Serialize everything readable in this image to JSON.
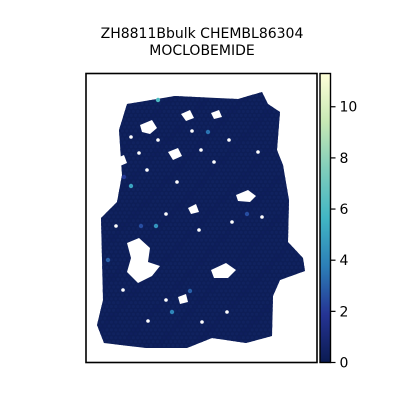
{
  "chart_data": {
    "type": "heatmap",
    "title": "ZH8811Bbulk CHEMBL86304",
    "subtitle": "MOCLOBEMIDE",
    "xlabel": "",
    "ylabel": "",
    "colorbar": {
      "min": 0,
      "max": 11.3,
      "ticks": [
        0,
        2,
        4,
        6,
        8,
        10
      ],
      "colors": [
        "#0b1b52",
        "#253494",
        "#2c7fb8",
        "#41b6c4",
        "#7fcdbb",
        "#c7e9b4",
        "#ffffd9"
      ]
    },
    "grid": false,
    "spots": {
      "typical_value": 0.3,
      "high_values": [
        {
          "value": 6.0
        },
        {
          "value": 5.0
        },
        {
          "value": 4.5
        },
        {
          "value": 4.0
        },
        {
          "value": 3.5
        },
        {
          "value": 3.0
        },
        {
          "value": 3.0
        },
        {
          "value": 2.5
        },
        {
          "value": 2.5
        },
        {
          "value": 2.0
        }
      ]
    }
  }
}
